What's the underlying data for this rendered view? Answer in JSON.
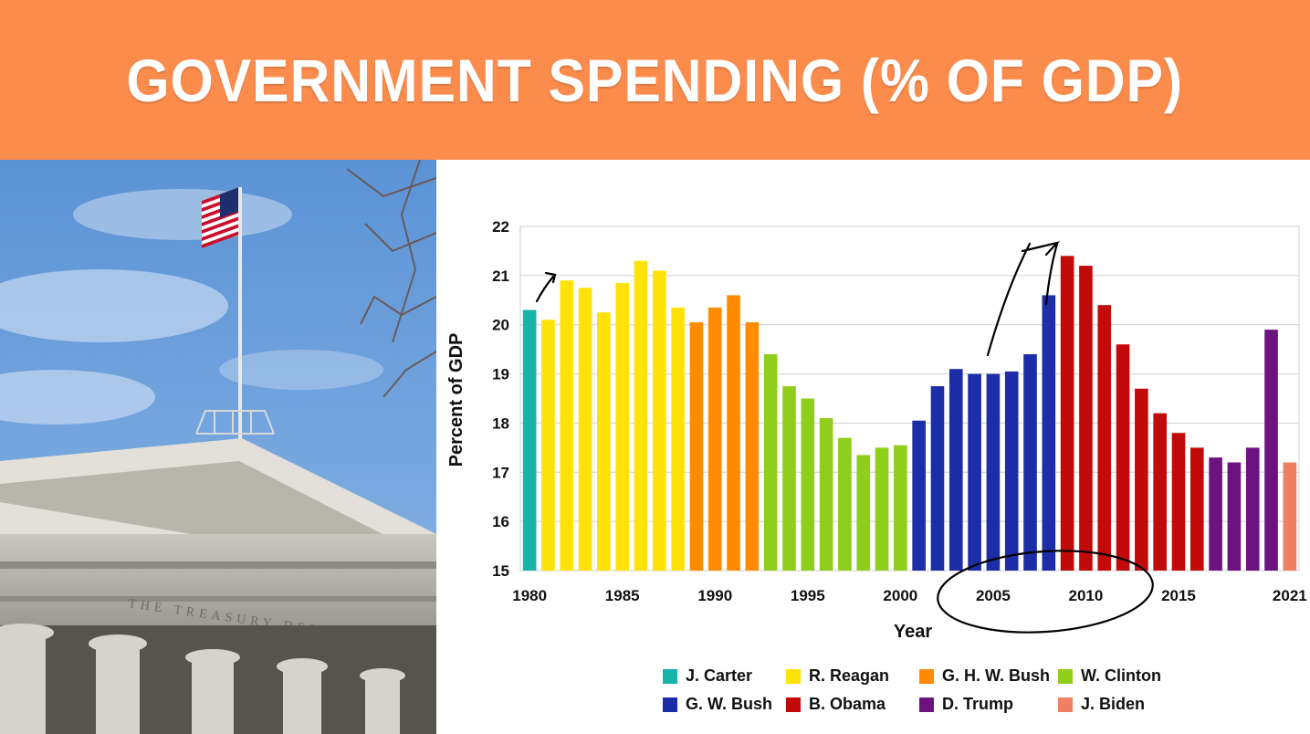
{
  "banner": {
    "title": "GOVERNMENT SPENDING (% OF GDP)",
    "background_color": "#fc8c4c"
  },
  "photo": {
    "subject": "US Treasury Department building with American flag",
    "inscription": "THE TREASURY DEPARTMENT"
  },
  "chart_data": {
    "type": "bar",
    "title": "",
    "xlabel": "Year",
    "ylabel": "Percent of GDP",
    "ylim": [
      15,
      22
    ],
    "yticks": [
      15,
      16,
      17,
      18,
      19,
      20,
      21,
      22
    ],
    "xticks": [
      "1980",
      "1985",
      "1990",
      "1995",
      "2000",
      "2005",
      "2010",
      "2015",
      "2021"
    ],
    "grid": true,
    "legend_position": "bottom",
    "categories": [
      1980,
      1981,
      1982,
      1983,
      1984,
      1985,
      1986,
      1987,
      1988,
      1989,
      1990,
      1991,
      1992,
      1993,
      1994,
      1995,
      1996,
      1997,
      1998,
      1999,
      2000,
      2001,
      2002,
      2003,
      2004,
      2005,
      2006,
      2007,
      2008,
      2009,
      2010,
      2011,
      2012,
      2013,
      2014,
      2015,
      2016,
      2017,
      2018,
      2019,
      2020,
      2021
    ],
    "values": [
      20.3,
      20.1,
      20.9,
      20.75,
      20.25,
      20.85,
      21.3,
      21.1,
      20.35,
      20.05,
      20.35,
      20.6,
      20.05,
      19.4,
      18.75,
      18.5,
      18.1,
      17.7,
      17.35,
      17.5,
      17.55,
      18.05,
      18.75,
      19.1,
      19.0,
      19.0,
      19.05,
      19.4,
      20.6,
      21.4,
      21.2,
      20.4,
      19.6,
      18.7,
      18.2,
      17.8,
      17.5,
      17.3,
      17.2,
      17.5,
      19.9,
      17.2
    ],
    "president_by_bar": [
      "J. Carter",
      "R. Reagan",
      "R. Reagan",
      "R. Reagan",
      "R. Reagan",
      "R. Reagan",
      "R. Reagan",
      "R. Reagan",
      "R. Reagan",
      "G. H. W. Bush",
      "G. H. W. Bush",
      "G. H. W. Bush",
      "G. H. W. Bush",
      "W. Clinton",
      "W. Clinton",
      "W. Clinton",
      "W. Clinton",
      "W. Clinton",
      "W. Clinton",
      "W. Clinton",
      "W. Clinton",
      "G. W. Bush",
      "G. W. Bush",
      "G. W. Bush",
      "G. W. Bush",
      "G. W. Bush",
      "G. W. Bush",
      "G. W. Bush",
      "G. W. Bush",
      "B. Obama",
      "B. Obama",
      "B. Obama",
      "B. Obama",
      "B. Obama",
      "B. Obama",
      "B. Obama",
      "B. Obama",
      "D. Trump",
      "D. Trump",
      "D. Trump",
      "D. Trump",
      "J. Biden"
    ],
    "series": [
      {
        "name": "J. Carter",
        "color": "#17b3a9"
      },
      {
        "name": "R. Reagan",
        "color": "#ffe20a"
      },
      {
        "name": "G. H. W. Bush",
        "color": "#ff8c00"
      },
      {
        "name": "W. Clinton",
        "color": "#8fcf1c"
      },
      {
        "name": "G. W. Bush",
        "color": "#1c2da8"
      },
      {
        "name": "B. Obama",
        "color": "#c20a0a"
      },
      {
        "name": "D. Trump",
        "color": "#6c1380"
      },
      {
        "name": "J. Biden",
        "color": "#ef8062"
      }
    ],
    "annotations": [
      "hand-drawn arrow above 1980-1981 bars",
      "hand-drawn arrow from 2005 up to 2009 bar",
      "hand-drawn circle around 2005 and 2010 x-axis labels"
    ]
  }
}
